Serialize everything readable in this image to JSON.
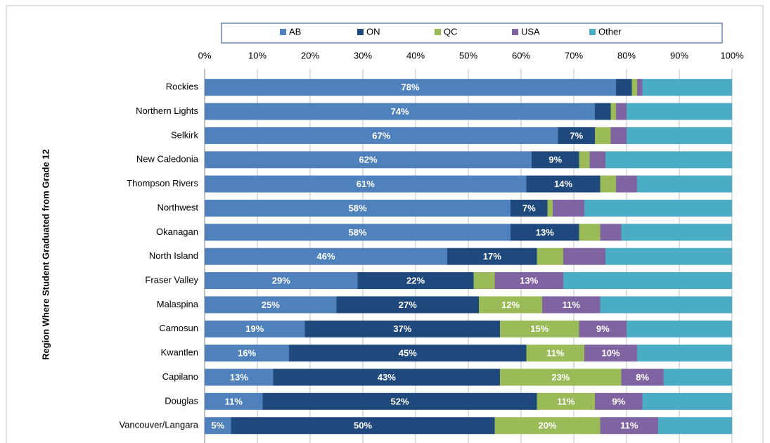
{
  "chart_data": {
    "type": "stacked-bar-horizontal",
    "y_axis_label": "Region Where Student Graduated from Grade 12",
    "categories": [
      "Rockies",
      "Northern Lights",
      "Selkirk",
      "New Caledonia",
      "Thompson Rivers",
      "Northwest",
      "Okanagan",
      "North Island",
      "Fraser Valley",
      "Malaspina",
      "Camosun",
      "Kwantlen",
      "Capilano",
      "Douglas",
      "Vancouver/Langara"
    ],
    "series": [
      {
        "name": "AB",
        "color": "#4f81bd",
        "values": [
          78,
          74,
          67,
          62,
          61,
          58,
          58,
          46,
          29,
          25,
          19,
          16,
          13,
          11,
          5
        ],
        "value_labels": [
          "78%",
          "74%",
          "67%",
          "62%",
          "61%",
          "58%",
          "58%",
          "46%",
          "29%",
          "25%",
          "19%",
          "16%",
          "13%",
          "11%",
          "5%"
        ]
      },
      {
        "name": "ON",
        "color": "#1f497d",
        "values": [
          3,
          3,
          7,
          9,
          14,
          7,
          13,
          17,
          22,
          27,
          37,
          45,
          43,
          52,
          50
        ],
        "value_labels": [
          null,
          null,
          "7%",
          "9%",
          "14%",
          "7%",
          "13%",
          "17%",
          "22%",
          "27%",
          "37%",
          "45%",
          "43%",
          "52%",
          "50%"
        ]
      },
      {
        "name": "QC",
        "color": "#9bbb59",
        "values": [
          1,
          1,
          3,
          2,
          3,
          1,
          4,
          5,
          4,
          12,
          15,
          11,
          23,
          11,
          20
        ],
        "value_labels": [
          null,
          null,
          null,
          null,
          null,
          null,
          null,
          null,
          null,
          "12%",
          "15%",
          "11%",
          "23%",
          "11%",
          "20%"
        ]
      },
      {
        "name": "USA",
        "color": "#8064a2",
        "values": [
          1,
          2,
          3,
          3,
          4,
          6,
          4,
          8,
          13,
          11,
          9,
          10,
          8,
          9,
          11
        ],
        "value_labels": [
          null,
          null,
          null,
          null,
          null,
          null,
          null,
          null,
          "13%",
          "11%",
          "9%",
          "10%",
          "8%",
          "9%",
          "11%"
        ]
      },
      {
        "name": "Other",
        "color": "#4bacc6",
        "values": [
          17,
          20,
          20,
          24,
          18,
          28,
          21,
          24,
          32,
          25,
          20,
          18,
          13,
          17,
          14
        ]
      }
    ],
    "xlim": [
      0,
      100
    ],
    "xticks": [
      {
        "value": 0,
        "label": "0%"
      },
      {
        "value": 10,
        "label": "10%"
      },
      {
        "value": 20,
        "label": "20%"
      },
      {
        "value": 30,
        "label": "30%"
      },
      {
        "value": 40,
        "label": "40%"
      },
      {
        "value": 50,
        "label": "50%"
      },
      {
        "value": 60,
        "label": "60%"
      },
      {
        "value": 70,
        "label": "70%"
      },
      {
        "value": 80,
        "label": "80%"
      },
      {
        "value": 90,
        "label": "90%"
      },
      {
        "value": 100,
        "label": "100%"
      }
    ],
    "grid": true,
    "legend": "top"
  }
}
